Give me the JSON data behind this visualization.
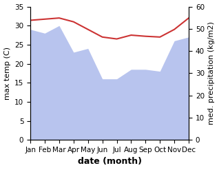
{
  "months": [
    "Jan",
    "Feb",
    "Mar",
    "Apr",
    "May",
    "Jun",
    "Jul",
    "Aug",
    "Sep",
    "Oct",
    "Nov",
    "Dec"
  ],
  "temperature": [
    31.4,
    31.7,
    32.0,
    31.0,
    29.0,
    27.0,
    26.5,
    27.5,
    27.2,
    27.0,
    29.0,
    32.0
  ],
  "precipitation": [
    29.0,
    28.0,
    30.0,
    23.0,
    24.0,
    16.0,
    16.0,
    18.5,
    18.5,
    18.0,
    26.0,
    27.0
  ],
  "temp_color": "#cc3333",
  "precip_color": "#b8c4ee",
  "left_ylim": [
    0,
    35
  ],
  "right_ylim": [
    0,
    60
  ],
  "left_yticks": [
    0,
    5,
    10,
    15,
    20,
    25,
    30,
    35
  ],
  "right_yticks": [
    0,
    10,
    20,
    30,
    40,
    50,
    60
  ],
  "xlabel": "date (month)",
  "ylabel_left": "max temp (C)",
  "ylabel_right": "med. precipitation (kg/m2)",
  "bg_color": "#ffffff",
  "label_fontsize": 8,
  "tick_fontsize": 7.5,
  "xlabel_fontsize": 9,
  "linewidth": 1.5
}
